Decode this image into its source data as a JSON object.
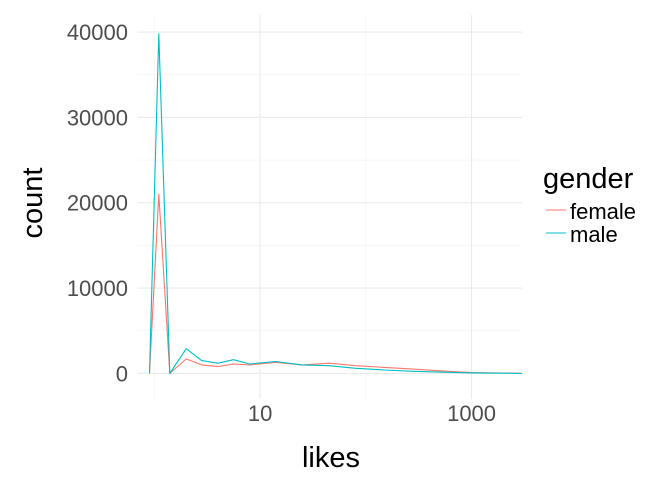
{
  "chart_data": {
    "type": "line",
    "xlabel": "likes",
    "ylabel": "count",
    "x_scale": "log10",
    "xlim": [
      0.7,
      3000
    ],
    "ylim": [
      -3000,
      42000
    ],
    "x_ticks": [
      {
        "value": 10,
        "label": "10"
      },
      {
        "value": 1000,
        "label": "1000"
      }
    ],
    "y_ticks": [
      {
        "value": 0,
        "label": "0"
      },
      {
        "value": 10000,
        "label": "10000"
      },
      {
        "value": 20000,
        "label": "20000"
      },
      {
        "value": 30000,
        "label": "30000"
      },
      {
        "value": 40000,
        "label": "40000"
      }
    ],
    "grid": true,
    "legend": {
      "title": "gender",
      "position": "right"
    },
    "series": [
      {
        "name": "female",
        "color": "#F8766D",
        "x": [
          0.9,
          1.1,
          1.4,
          2.0,
          2.8,
          4.0,
          5.6,
          8.0,
          14,
          25,
          45,
          80,
          150,
          280,
          500,
          1000,
          2000,
          3000
        ],
        "y": [
          0,
          21000,
          0,
          1700,
          1000,
          800,
          1100,
          1000,
          1300,
          1000,
          1200,
          900,
          700,
          500,
          300,
          100,
          50,
          0
        ]
      },
      {
        "name": "male",
        "color": "#00BFC4",
        "x": [
          0.9,
          1.1,
          1.4,
          2.0,
          2.8,
          4.0,
          5.6,
          8.0,
          14,
          25,
          45,
          80,
          150,
          280,
          500,
          1000,
          2000,
          3000
        ],
        "y": [
          0,
          39800,
          0,
          2900,
          1500,
          1200,
          1600,
          1100,
          1400,
          1000,
          900,
          600,
          400,
          250,
          150,
          60,
          20,
          0
        ]
      }
    ]
  }
}
